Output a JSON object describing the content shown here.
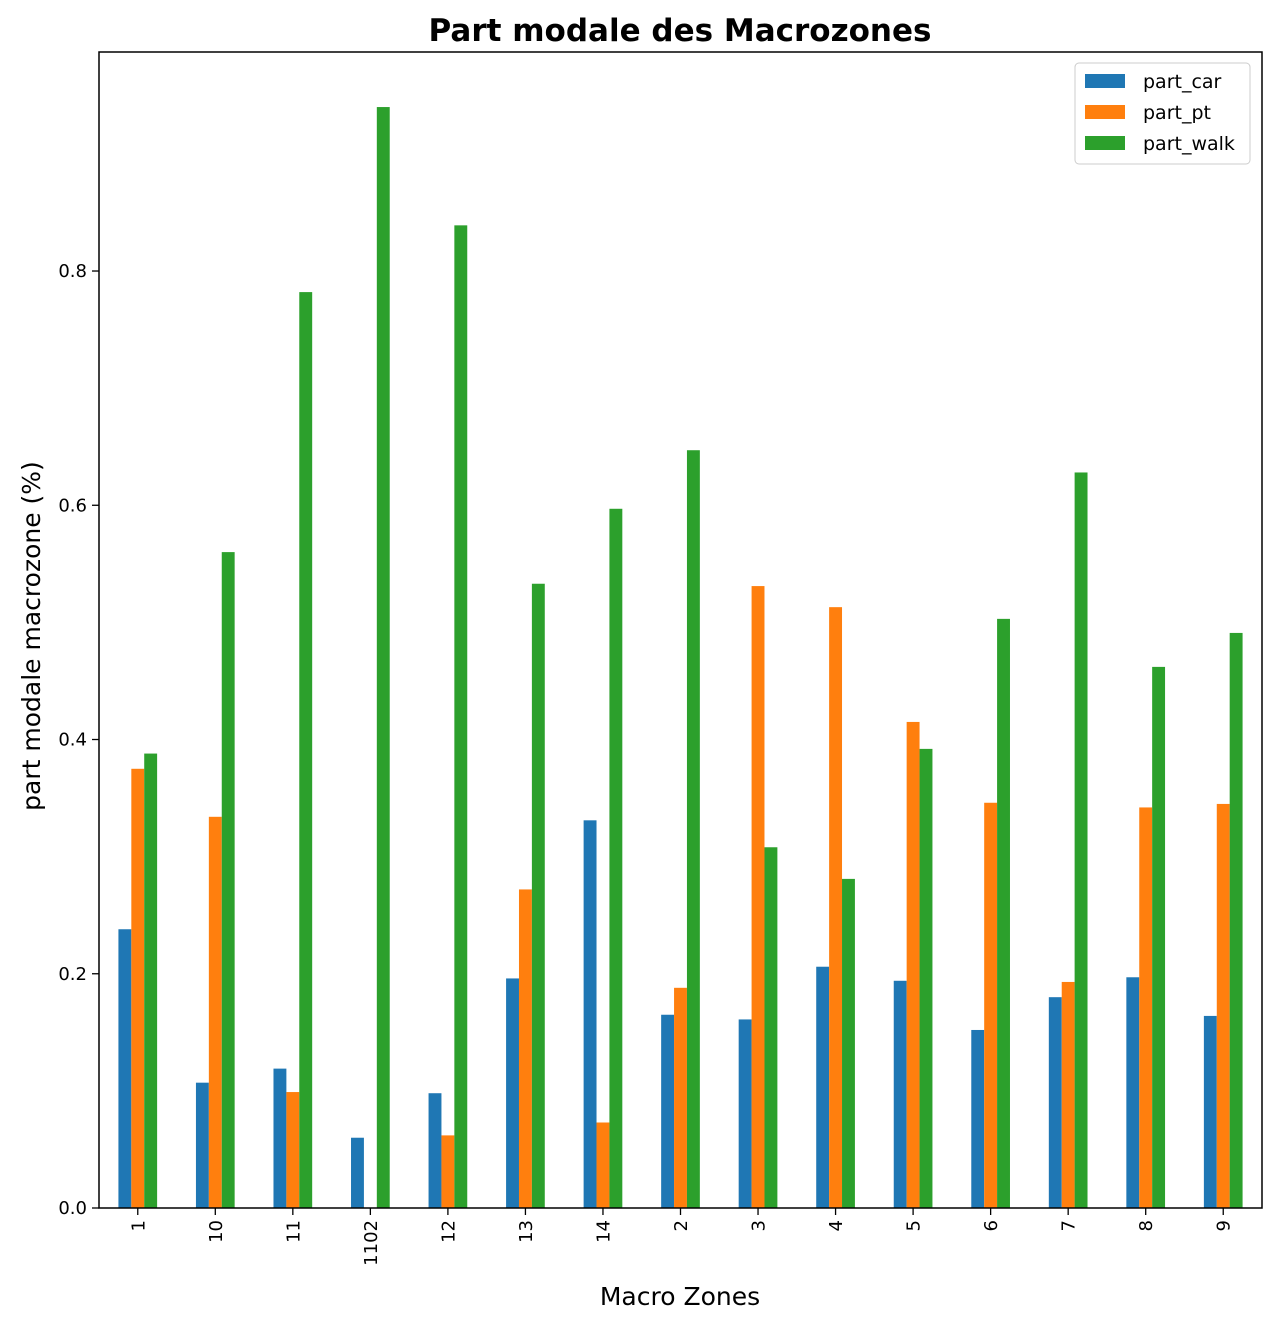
{
  "chart_data": {
    "type": "bar",
    "title": "Part modale des Macrozones",
    "xlabel": "Macro Zones",
    "ylabel": "part modale macrozone (%)",
    "categories": [
      "1",
      "10",
      "11",
      "1102",
      "12",
      "13",
      "14",
      "2",
      "3",
      "4",
      "5",
      "6",
      "7",
      "8",
      "9"
    ],
    "series": [
      {
        "name": "part_car",
        "color": "#1f77b4",
        "values": [
          0.238,
          0.107,
          0.119,
          0.06,
          0.098,
          0.196,
          0.331,
          0.165,
          0.161,
          0.206,
          0.194,
          0.152,
          0.18,
          0.197,
          0.164
        ]
      },
      {
        "name": "part_pt",
        "color": "#ff7f0e",
        "values": [
          0.375,
          0.334,
          0.099,
          0.0,
          0.062,
          0.272,
          0.073,
          0.188,
          0.531,
          0.513,
          0.415,
          0.346,
          0.193,
          0.342,
          0.345
        ]
      },
      {
        "name": "part_walk",
        "color": "#2ca02c",
        "values": [
          0.388,
          0.56,
          0.782,
          0.94,
          0.839,
          0.533,
          0.597,
          0.647,
          0.308,
          0.281,
          0.392,
          0.503,
          0.628,
          0.462,
          0.491
        ]
      }
    ],
    "yticks": [
      "0.0",
      "0.2",
      "0.4",
      "0.6",
      "0.8"
    ],
    "ylim": [
      0,
      0.987
    ],
    "legend_position": "top-right",
    "grid": false
  }
}
